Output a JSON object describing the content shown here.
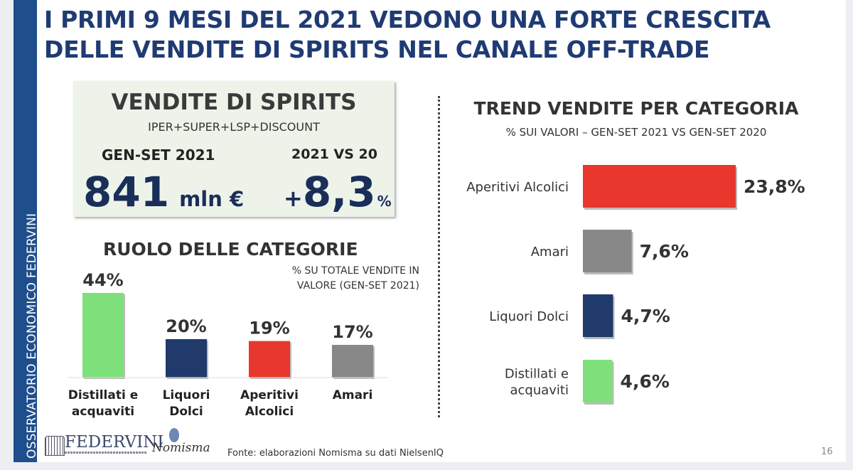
{
  "title": {
    "line1": "I PRIMI 9 MESI DEL 2021 VEDONO UNA FORTE CRESCITA",
    "line2": "DELLE VENDITE DI SPIRITS NEL CANALE OFF-TRADE"
  },
  "sidebar": {
    "label": "OSSERVATORIO ECONOMICO  FEDERVINI"
  },
  "kpi": {
    "heading": "VENDITE DI SPIRITS",
    "channels": "IPER+SUPER+LSP+DISCOUNT",
    "period_label": "GEN-SET 2021",
    "value": "841",
    "value_unit": "mln €",
    "comparison_label": "2021 VS 20",
    "growth_sign": "+",
    "growth": "8,3",
    "growth_unit": "%"
  },
  "colors": {
    "green": "#7ee07a",
    "navy": "#1f3a6b",
    "red": "#e8372c",
    "gray": "#888888",
    "title": "#1f3b73"
  },
  "chart_data": [
    {
      "type": "bar",
      "title": "RUOLO DELLE CATEGORIE",
      "subtitle_line1": "% SU TOTALE VENDITE IN",
      "subtitle_line2": "VALORE (GEN-SET 2021)",
      "categories": [
        [
          "Distillati e",
          "acquaviti"
        ],
        [
          "Liquori",
          "Dolci"
        ],
        [
          "Aperitivi",
          "Alcolici"
        ],
        [
          "Amari"
        ]
      ],
      "values": [
        44,
        20,
        19,
        17
      ],
      "labels": [
        "44%",
        "20%",
        "19%",
        "17%"
      ],
      "colors": [
        "#7ee07a",
        "#1f3a6b",
        "#e8372c",
        "#888888"
      ],
      "ylim": [
        0,
        44
      ]
    },
    {
      "type": "bar",
      "orientation": "horizontal",
      "title": "TREND VENDITE PER CATEGORIA",
      "subtitle": "% SUI VALORI – GEN-SET 2021 VS GEN-SET 2020",
      "categories": [
        [
          "Aperitivi Alcolici"
        ],
        [
          "Amari"
        ],
        [
          "Liquori Dolci"
        ],
        [
          "Distillati e",
          "acquaviti"
        ]
      ],
      "values": [
        23.8,
        7.6,
        4.7,
        4.6
      ],
      "labels": [
        "23,8%",
        "7,6%",
        "4,7%",
        "4,6%"
      ],
      "colors": [
        "#e8372c",
        "#888888",
        "#1f3a6b",
        "#7ee07a"
      ],
      "xlim": [
        0,
        23.8
      ]
    }
  ],
  "footer": {
    "source": "Fonte: elaborazioni Nomisma su dati NielsenIQ",
    "logo_federvini": "FEDERVINI",
    "logo_nomisma": "Nomisma",
    "page_number": "16"
  }
}
